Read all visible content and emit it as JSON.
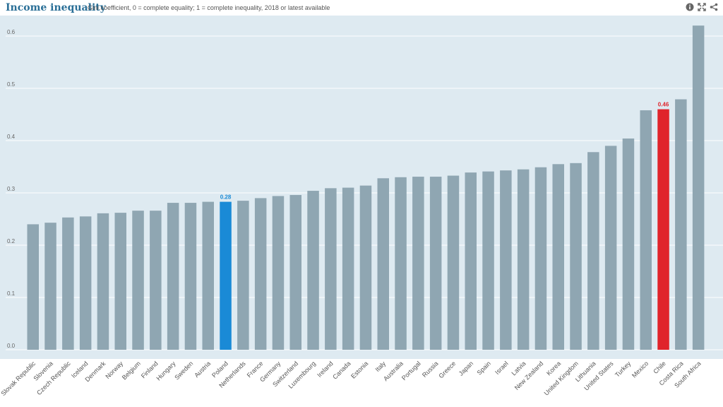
{
  "header": {
    "title": "Income inequality",
    "subtitle": "Gini coefficient, 0 = complete equality; 1 = complete inequality, 2018 or latest available",
    "icons": [
      "info-icon",
      "expand-icon",
      "share-icon"
    ]
  },
  "colors": {
    "panel_bg": "#deeaf1",
    "bar": "#8fa6b2",
    "highlight_blue": "#1a8ad6",
    "highlight_red": "#e0242b",
    "title": "#2a6f97",
    "grid": "#ffffff"
  },
  "chart_data": {
    "type": "bar",
    "title": "Income inequality",
    "subtitle": "Gini coefficient, 0 = complete equality; 1 = complete inequality, 2018 or latest available",
    "xlabel": "",
    "ylabel": "",
    "ylim": [
      0,
      0.65
    ],
    "yticks": [
      "0.0",
      "0.1",
      "0.2",
      "0.3",
      "0.4",
      "0.5",
      "0.6"
    ],
    "grid": true,
    "categories": [
      "Slovak Republic",
      "Slovenia",
      "Czech Republic",
      "Iceland",
      "Denmark",
      "Norway",
      "Belgium",
      "Finland",
      "Hungary",
      "Sweden",
      "Austria",
      "Poland",
      "Netherlands",
      "France",
      "Germany",
      "Switzerland",
      "Luxembourg",
      "Ireland",
      "Canada",
      "Estonia",
      "Italy",
      "Australia",
      "Portugal",
      "Russia",
      "Greece",
      "Japan",
      "Spain",
      "Israel",
      "Latvia",
      "New Zealand",
      "Korea",
      "United Kingdom",
      "Lithuania",
      "United States",
      "Turkey",
      "Mexico",
      "Chile",
      "Costa Rica",
      "South Africa"
    ],
    "values": [
      0.24,
      0.243,
      0.253,
      0.255,
      0.261,
      0.262,
      0.266,
      0.266,
      0.281,
      0.281,
      0.283,
      0.283,
      0.285,
      0.29,
      0.294,
      0.296,
      0.304,
      0.309,
      0.31,
      0.314,
      0.328,
      0.33,
      0.331,
      0.331,
      0.333,
      0.339,
      0.341,
      0.343,
      0.345,
      0.349,
      0.355,
      0.357,
      0.378,
      0.39,
      0.404,
      0.458,
      0.46,
      0.479,
      0.62
    ],
    "highlights": [
      {
        "category": "Poland",
        "label": "0.28",
        "color": "blue"
      },
      {
        "category": "Chile",
        "label": "0.46",
        "color": "red"
      }
    ]
  }
}
